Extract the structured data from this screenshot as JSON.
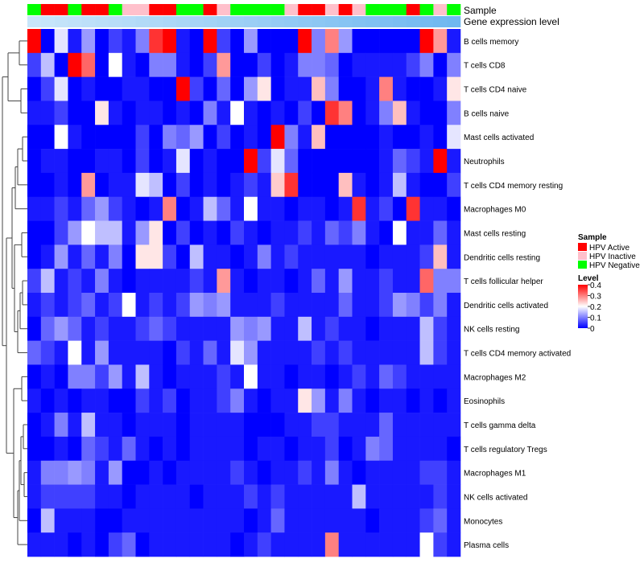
{
  "chart_data": {
    "type": "heatmap",
    "annotation_labels": [
      "Sample",
      "Gene expression level"
    ],
    "rows": [
      "B cells memory",
      "T cells CD8",
      "T cells CD4 naive",
      "B cells naive",
      "Mast cells activated",
      "Neutrophils",
      "T cells CD4 memory resting",
      "Macrophages M0",
      "Mast cells resting",
      "Dendritic cells resting",
      "T cells follicular helper",
      "Dendritic cells activated",
      "NK cells resting",
      "T cells CD4 memory activated",
      "Macrophages M2",
      "Eosinophils",
      "T cells gamma delta",
      "T cells regulatory  Tregs",
      "Macrophages M1",
      "NK cells activated",
      "Monocytes",
      "Plasma cells"
    ],
    "sample_groups": [
      "G",
      "R",
      "R",
      "G",
      "R",
      "R",
      "G",
      "I",
      "I",
      "R",
      "R",
      "G",
      "G",
      "R",
      "I",
      "G",
      "G",
      "G",
      "G",
      "I",
      "R",
      "R",
      "I",
      "R",
      "I",
      "G",
      "G",
      "G",
      "R",
      "G",
      "I",
      "G"
    ],
    "color_scale": {
      "min": 0,
      "max": 0.4,
      "colors": [
        "#0000ff",
        "#ffffff",
        "#ff0000"
      ]
    },
    "values": [
      [
        0.4,
        0.0,
        0.18,
        0.02,
        0.12,
        0.0,
        0.05,
        0.02,
        0.1,
        0.36,
        0.4,
        0.02,
        0.0,
        0.4,
        0.05,
        0.0,
        0.12,
        0.0,
        0.0,
        0.0,
        0.4,
        0.1,
        0.3,
        0.12,
        0.0,
        0.0,
        0.0,
        0.0,
        0.0,
        0.4,
        0.28,
        0.02
      ],
      [
        0.05,
        0.15,
        0.0,
        0.4,
        0.32,
        0.0,
        0.2,
        0.02,
        0.0,
        0.1,
        0.1,
        0.02,
        0.0,
        0.05,
        0.28,
        0.0,
        0.0,
        0.05,
        0.0,
        0.02,
        0.1,
        0.1,
        0.08,
        0.0,
        0.02,
        0.02,
        0.02,
        0.02,
        0.05,
        0.1,
        0.0,
        0.1
      ],
      [
        0.0,
        0.05,
        0.18,
        0.0,
        0.02,
        0.0,
        0.0,
        0.02,
        0.02,
        0.0,
        0.0,
        0.4,
        0.05,
        0.0,
        0.08,
        0.0,
        0.12,
        0.22,
        0.0,
        0.02,
        0.02,
        0.25,
        0.1,
        0.0,
        0.0,
        0.02,
        0.3,
        0.02,
        0.0,
        0.0,
        0.02,
        0.22
      ],
      [
        0.02,
        0.02,
        0.05,
        0.0,
        0.0,
        0.22,
        0.02,
        0.0,
        0.02,
        0.02,
        0.0,
        0.02,
        0.0,
        0.1,
        0.02,
        0.2,
        0.02,
        0.0,
        0.02,
        0.0,
        0.05,
        0.0,
        0.36,
        0.3,
        0.0,
        0.02,
        0.1,
        0.25,
        0.02,
        0.0,
        0.0,
        0.1
      ],
      [
        0.0,
        0.0,
        0.2,
        0.02,
        0.0,
        0.0,
        0.0,
        0.0,
        0.05,
        0.0,
        0.1,
        0.08,
        0.12,
        0.0,
        0.05,
        0.0,
        0.02,
        0.0,
        0.4,
        0.1,
        0.02,
        0.25,
        0.0,
        0.0,
        0.0,
        0.0,
        0.02,
        0.0,
        0.0,
        0.02,
        0.0,
        0.18
      ],
      [
        0.0,
        0.02,
        0.02,
        0.0,
        0.0,
        0.02,
        0.02,
        0.0,
        0.05,
        0.0,
        0.02,
        0.18,
        0.0,
        0.02,
        0.0,
        0.0,
        0.4,
        0.05,
        0.18,
        0.08,
        0.0,
        0.0,
        0.0,
        0.0,
        0.0,
        0.0,
        0.02,
        0.08,
        0.05,
        0.02,
        0.4,
        0.02
      ],
      [
        0.0,
        0.0,
        0.02,
        0.0,
        0.28,
        0.0,
        0.02,
        0.02,
        0.18,
        0.15,
        0.0,
        0.05,
        0.0,
        0.02,
        0.0,
        0.02,
        0.05,
        0.02,
        0.24,
        0.36,
        0.0,
        0.0,
        0.0,
        0.25,
        0.02,
        0.0,
        0.02,
        0.15,
        0.02,
        0.0,
        0.0,
        0.05
      ],
      [
        0.02,
        0.02,
        0.05,
        0.02,
        0.08,
        0.12,
        0.05,
        0.02,
        0.0,
        0.02,
        0.3,
        0.0,
        0.02,
        0.15,
        0.08,
        0.02,
        0.2,
        0.02,
        0.02,
        0.0,
        0.02,
        0.02,
        0.0,
        0.02,
        0.36,
        0.02,
        0.05,
        0.0,
        0.36,
        0.02,
        0.02,
        0.0
      ],
      [
        0.0,
        0.0,
        0.05,
        0.12,
        0.2,
        0.15,
        0.15,
        0.02,
        0.12,
        0.22,
        0.0,
        0.05,
        0.0,
        0.02,
        0.0,
        0.05,
        0.02,
        0.0,
        0.02,
        0.02,
        0.05,
        0.02,
        0.08,
        0.05,
        0.1,
        0.02,
        0.0,
        0.2,
        0.02,
        0.02,
        0.08,
        0.02
      ],
      [
        0.0,
        0.02,
        0.12,
        0.02,
        0.08,
        0.02,
        0.1,
        0.0,
        0.22,
        0.22,
        0.05,
        0.0,
        0.15,
        0.02,
        0.02,
        0.0,
        0.02,
        0.1,
        0.02,
        0.05,
        0.02,
        0.02,
        0.02,
        0.02,
        0.02,
        0.0,
        0.02,
        0.02,
        0.02,
        0.05,
        0.25,
        0.02
      ],
      [
        0.05,
        0.15,
        0.02,
        0.05,
        0.02,
        0.1,
        0.02,
        0.0,
        0.02,
        0.02,
        0.02,
        0.02,
        0.05,
        0.02,
        0.28,
        0.02,
        0.0,
        0.02,
        0.02,
        0.0,
        0.02,
        0.08,
        0.02,
        0.12,
        0.02,
        0.02,
        0.05,
        0.02,
        0.02,
        0.32,
        0.1,
        0.1
      ],
      [
        0.02,
        0.05,
        0.02,
        0.05,
        0.08,
        0.02,
        0.05,
        0.2,
        0.02,
        0.05,
        0.02,
        0.05,
        0.12,
        0.1,
        0.12,
        0.02,
        0.02,
        0.02,
        0.05,
        0.02,
        0.02,
        0.02,
        0.02,
        0.08,
        0.02,
        0.02,
        0.05,
        0.12,
        0.1,
        0.05,
        0.1,
        0.02
      ],
      [
        0.0,
        0.08,
        0.12,
        0.08,
        0.02,
        0.05,
        0.02,
        0.02,
        0.05,
        0.08,
        0.05,
        0.02,
        0.02,
        0.02,
        0.02,
        0.12,
        0.1,
        0.12,
        0.02,
        0.02,
        0.15,
        0.02,
        0.05,
        0.02,
        0.02,
        0.0,
        0.02,
        0.02,
        0.02,
        0.15,
        0.05,
        0.02
      ],
      [
        0.08,
        0.05,
        0.02,
        0.2,
        0.02,
        0.12,
        0.02,
        0.02,
        0.02,
        0.02,
        0.0,
        0.05,
        0.02,
        0.08,
        0.02,
        0.18,
        0.12,
        0.02,
        0.02,
        0.02,
        0.02,
        0.05,
        0.02,
        0.05,
        0.02,
        0.02,
        0.02,
        0.02,
        0.02,
        0.15,
        0.05,
        0.02
      ],
      [
        0.0,
        0.02,
        0.0,
        0.1,
        0.1,
        0.05,
        0.12,
        0.02,
        0.15,
        0.02,
        0.0,
        0.02,
        0.02,
        0.02,
        0.05,
        0.02,
        0.2,
        0.02,
        0.02,
        0.0,
        0.02,
        0.02,
        0.0,
        0.02,
        0.05,
        0.02,
        0.08,
        0.05,
        0.02,
        0.02,
        0.02,
        0.02
      ],
      [
        0.02,
        0.0,
        0.02,
        0.0,
        0.02,
        0.02,
        0.0,
        0.0,
        0.05,
        0.02,
        0.05,
        0.0,
        0.02,
        0.02,
        0.05,
        0.1,
        0.02,
        0.0,
        0.02,
        0.02,
        0.22,
        0.12,
        0.02,
        0.1,
        0.02,
        0.0,
        0.02,
        0.02,
        0.0,
        0.02,
        0.0,
        0.02
      ],
      [
        0.0,
        0.02,
        0.1,
        0.02,
        0.15,
        0.02,
        0.02,
        0.0,
        0.02,
        0.02,
        0.02,
        0.0,
        0.02,
        0.02,
        0.02,
        0.02,
        0.0,
        0.0,
        0.0,
        0.02,
        0.02,
        0.05,
        0.05,
        0.02,
        0.02,
        0.02,
        0.08,
        0.02,
        0.02,
        0.02,
        0.02,
        0.02
      ],
      [
        0.0,
        0.0,
        0.02,
        0.0,
        0.08,
        0.05,
        0.02,
        0.08,
        0.02,
        0.0,
        0.02,
        0.0,
        0.02,
        0.02,
        0.02,
        0.02,
        0.0,
        0.02,
        0.02,
        0.0,
        0.02,
        0.02,
        0.05,
        0.0,
        0.02,
        0.1,
        0.08,
        0.02,
        0.02,
        0.02,
        0.02,
        0.0
      ],
      [
        0.02,
        0.1,
        0.1,
        0.12,
        0.1,
        0.02,
        0.12,
        0.0,
        0.0,
        0.02,
        0.0,
        0.02,
        0.02,
        0.02,
        0.02,
        0.05,
        0.02,
        0.0,
        0.02,
        0.02,
        0.05,
        0.02,
        0.1,
        0.02,
        0.0,
        0.02,
        0.02,
        0.02,
        0.02,
        0.05,
        0.05,
        0.02
      ],
      [
        0.02,
        0.05,
        0.05,
        0.05,
        0.05,
        0.02,
        0.02,
        0.0,
        0.02,
        0.02,
        0.02,
        0.02,
        0.0,
        0.02,
        0.02,
        0.02,
        0.05,
        0.02,
        0.05,
        0.02,
        0.02,
        0.02,
        0.02,
        0.02,
        0.15,
        0.02,
        0.02,
        0.02,
        0.02,
        0.02,
        0.05,
        0.02
      ],
      [
        0.0,
        0.15,
        0.02,
        0.02,
        0.02,
        0.0,
        0.0,
        0.02,
        0.02,
        0.02,
        0.02,
        0.02,
        0.02,
        0.02,
        0.02,
        0.02,
        0.0,
        0.02,
        0.08,
        0.02,
        0.02,
        0.02,
        0.02,
        0.02,
        0.02,
        0.0,
        0.02,
        0.02,
        0.02,
        0.05,
        0.08,
        0.02
      ],
      [
        0.02,
        0.02,
        0.02,
        0.0,
        0.02,
        0.0,
        0.05,
        0.08,
        0.0,
        0.02,
        0.02,
        0.02,
        0.02,
        0.02,
        0.02,
        0.0,
        0.02,
        0.05,
        0.02,
        0.02,
        0.02,
        0.02,
        0.3,
        0.02,
        0.02,
        0.02,
        0.02,
        0.02,
        0.02,
        0.2,
        0.05,
        0.02
      ]
    ],
    "legend_sample": {
      "title": "Sample",
      "items": [
        {
          "key": "R",
          "label": "HPV Active",
          "color": "#ff0000"
        },
        {
          "key": "I",
          "label": "HPV Inactive",
          "color": "#ffc0cb"
        },
        {
          "key": "G",
          "label": "HPV Negative",
          "color": "#00ff00"
        }
      ]
    },
    "legend_level": {
      "title": "Level",
      "ticks": [
        "0.4",
        "0.3",
        "0.2",
        "0.1",
        "0"
      ],
      "tick_values": [
        0.4,
        0.3,
        0.2,
        0.1,
        0
      ]
    },
    "expression_bar_colors": [
      "#c9e6fa",
      "#6fb8f0"
    ]
  }
}
